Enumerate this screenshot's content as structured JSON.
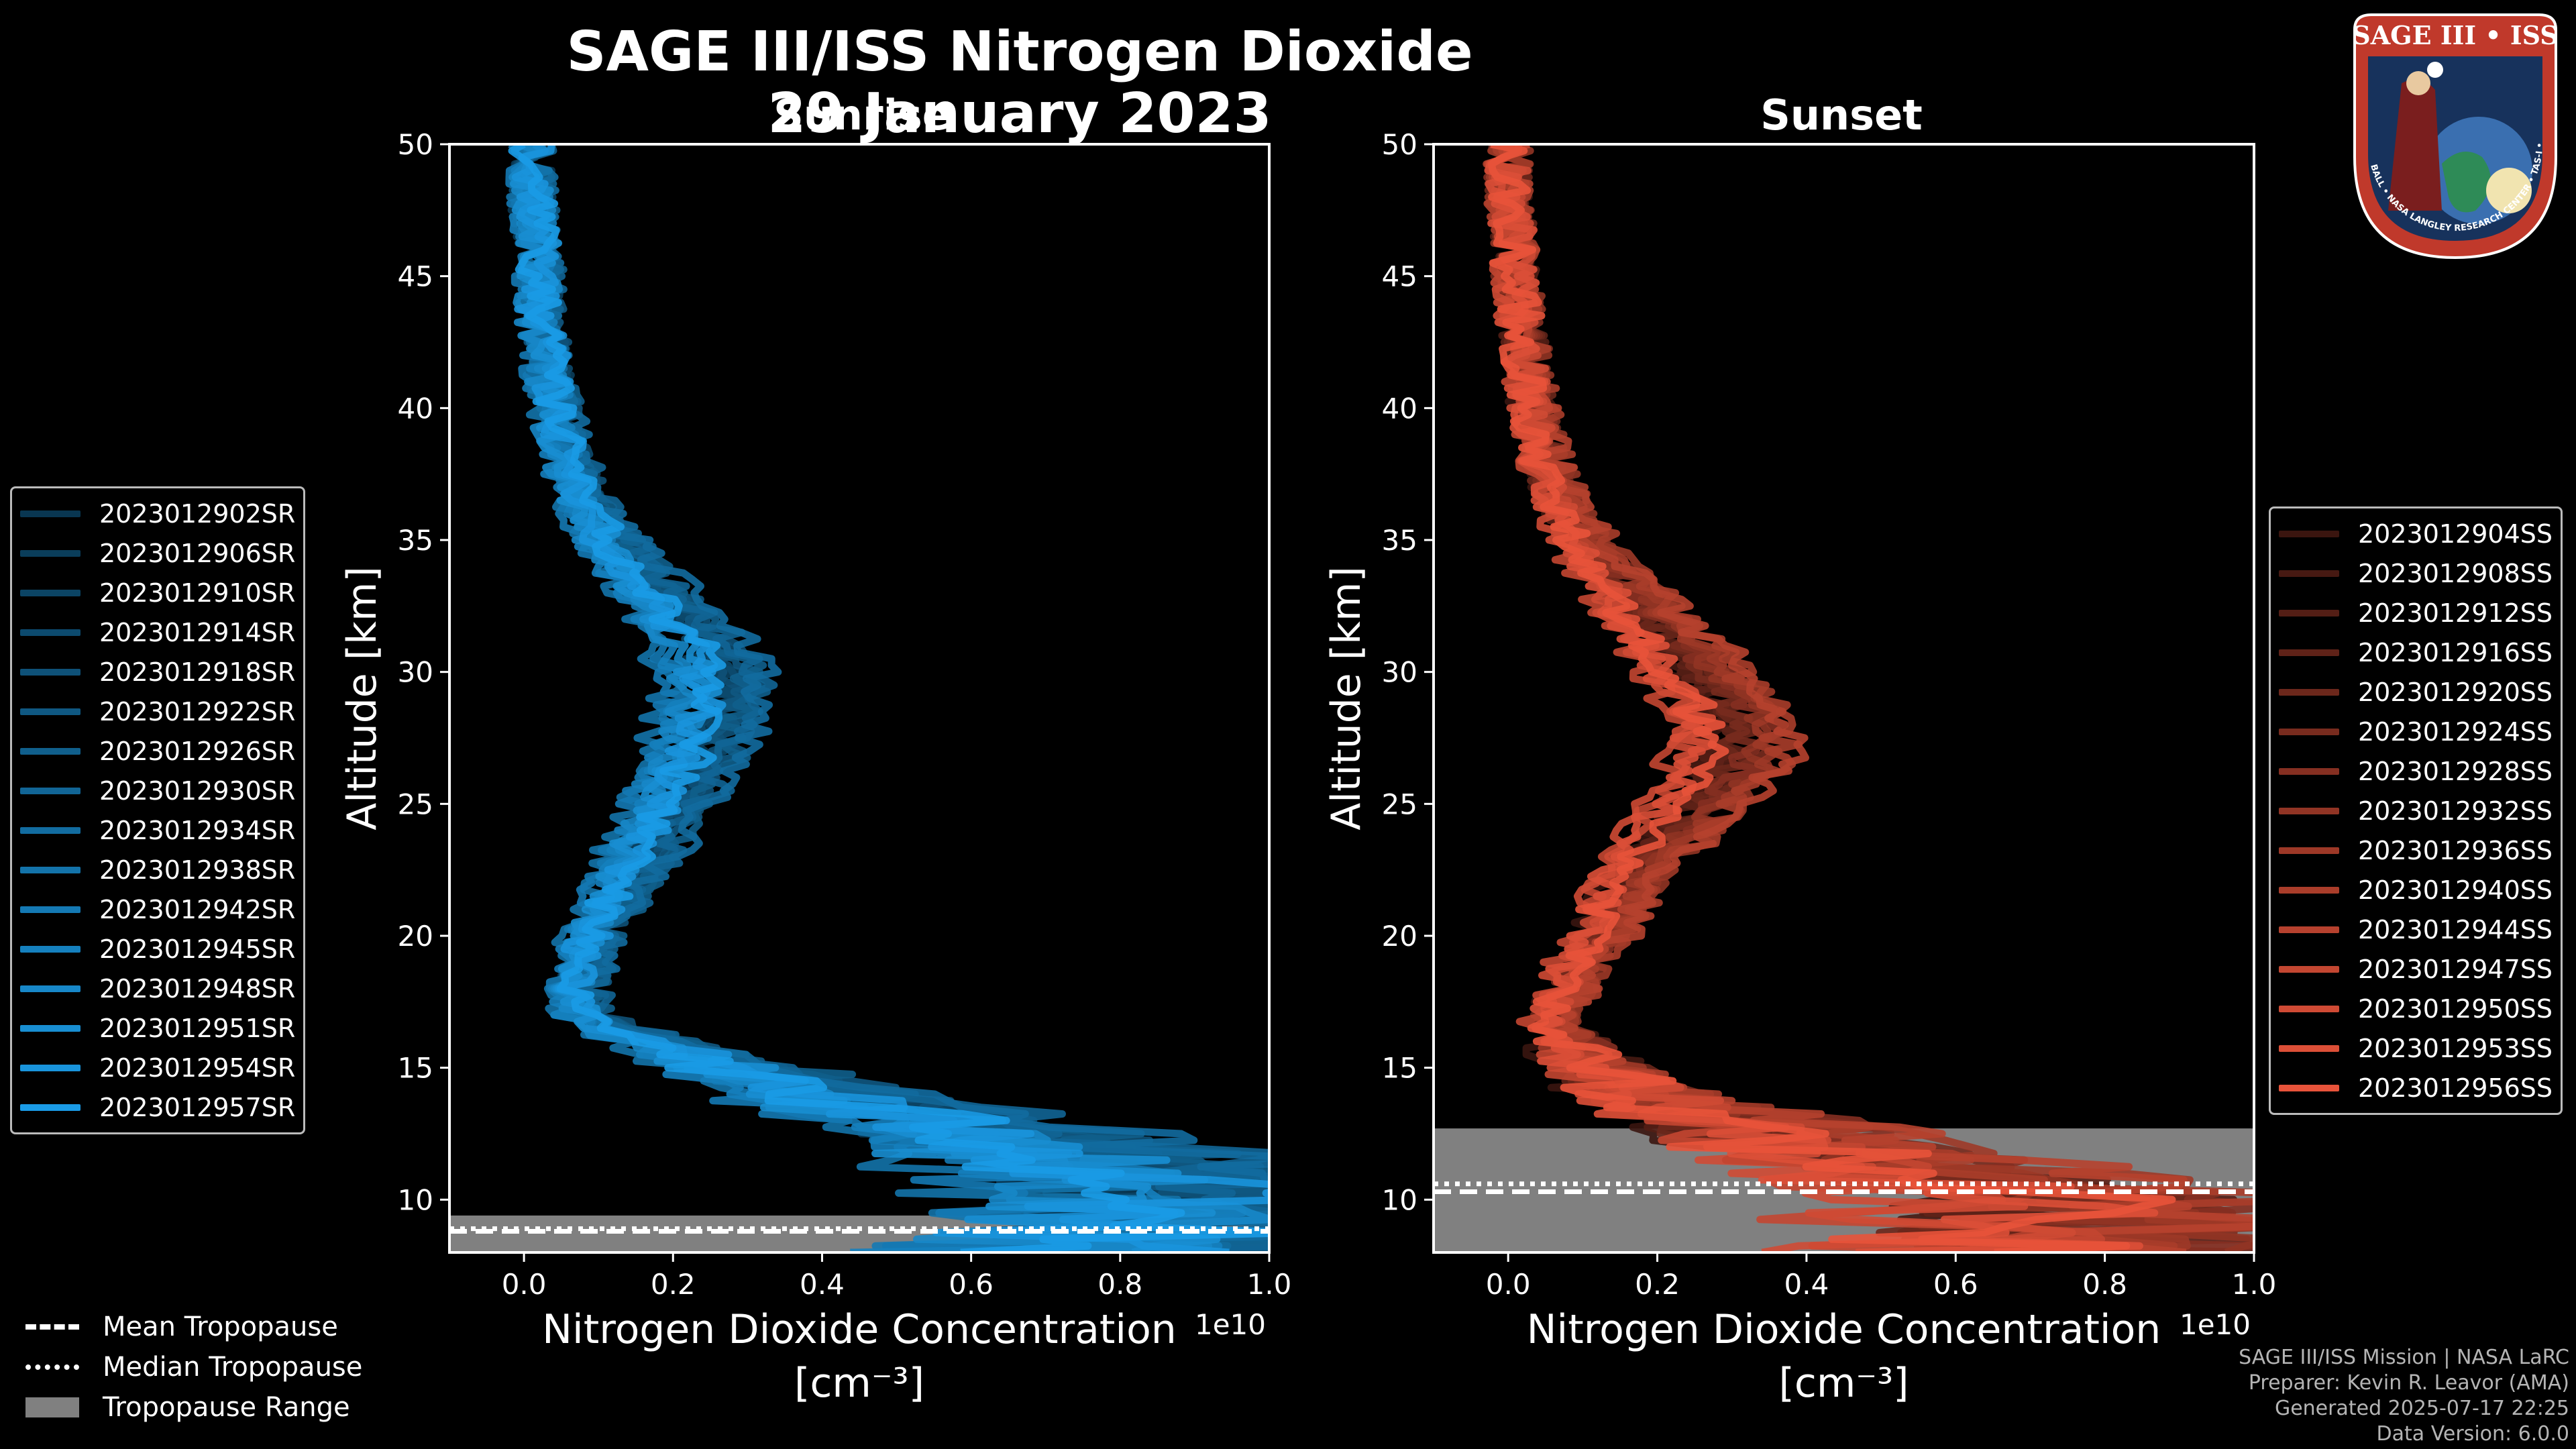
{
  "header": {
    "title": "SAGE III/ISS Nitrogen Dioxide",
    "date": "29 January 2023"
  },
  "colors": {
    "sunrise": "#1a9be6",
    "sunset": "#e8533a",
    "background": "#000000",
    "tropopause_fill": "#808080"
  },
  "panels": {
    "sunrise": {
      "subtitle": "Sunrise",
      "ylabel": "Altitude [km]",
      "xlabel_line1": "Nitrogen Dioxide Concentration",
      "xlabel_line2": "[cm⁻³]",
      "offset_text": "1e10"
    },
    "sunset": {
      "subtitle": "Sunset",
      "ylabel": "Altitude [km]",
      "xlabel_line1": "Nitrogen Dioxide Concentration",
      "xlabel_line2": "[cm⁻³]",
      "offset_text": "1e10"
    }
  },
  "legend_sunrise": [
    "2023012902SR",
    "2023012906SR",
    "2023012910SR",
    "2023012914SR",
    "2023012918SR",
    "2023012922SR",
    "2023012926SR",
    "2023012930SR",
    "2023012934SR",
    "2023012938SR",
    "2023012942SR",
    "2023012945SR",
    "2023012948SR",
    "2023012951SR",
    "2023012954SR",
    "2023012957SR"
  ],
  "legend_sunset": [
    "2023012904SS",
    "2023012908SS",
    "2023012912SS",
    "2023012916SS",
    "2023012920SS",
    "2023012924SS",
    "2023012928SS",
    "2023012932SS",
    "2023012936SS",
    "2023012940SS",
    "2023012944SS",
    "2023012947SS",
    "2023012950SS",
    "2023012953SS",
    "2023012956SS"
  ],
  "tropopause_legend": {
    "mean": "Mean Tropopause",
    "median": "Median Tropopause",
    "range": "Tropopause Range"
  },
  "credits": [
    "SAGE III/ISS Mission | NASA LaRC",
    "Preparer: Kevin R. Leavor (AMA)",
    "Generated 2025-07-17 22:25",
    "Data Version: 6.0.0"
  ],
  "logo": {
    "title": "SAGE III • ISS",
    "ring_text": "BALL • NASA LANGLEY RESEARCH CENTER • TAS-I • ESA"
  },
  "chart_data": [
    {
      "type": "line",
      "title": "Sunrise",
      "xlabel": "Nitrogen Dioxide Concentration [cm⁻³]",
      "ylabel": "Altitude [km]",
      "xlim": [
        -0.1,
        1.0
      ],
      "ylim": [
        8,
        50
      ],
      "x_scale_note": "1e10",
      "xticks": [
        0.0,
        0.2,
        0.4,
        0.6,
        0.8,
        1.0
      ],
      "yticks": [
        10,
        15,
        20,
        25,
        30,
        35,
        40,
        45,
        50
      ],
      "altitude": [
        8.5,
        10,
        11,
        12,
        13,
        14,
        15,
        16,
        17,
        18,
        19,
        20,
        21,
        22,
        23,
        24,
        25,
        26,
        27,
        28,
        29,
        30,
        31,
        32,
        33,
        34,
        35,
        36,
        37,
        38,
        39,
        40,
        41,
        42,
        43,
        44,
        45,
        46,
        47,
        48,
        49,
        50
      ],
      "mean_profile": [
        0.7,
        0.8,
        0.75,
        0.6,
        0.5,
        0.35,
        0.25,
        0.15,
        0.08,
        0.07,
        0.08,
        0.09,
        0.11,
        0.13,
        0.15,
        0.17,
        0.19,
        0.21,
        0.23,
        0.24,
        0.25,
        0.25,
        0.23,
        0.2,
        0.17,
        0.14,
        0.11,
        0.09,
        0.07,
        0.06,
        0.05,
        0.04,
        0.035,
        0.03,
        0.025,
        0.02,
        0.02,
        0.02,
        0.015,
        0.01,
        0.01,
        0.01
      ],
      "series_count": 16,
      "tropopause": {
        "mean_km": 8.8,
        "median_km": 8.9,
        "range_km": [
          8.0,
          9.4
        ]
      }
    },
    {
      "type": "line",
      "title": "Sunset",
      "xlabel": "Nitrogen Dioxide Concentration [cm⁻³]",
      "ylabel": "Altitude [km]",
      "xlim": [
        -0.1,
        1.0
      ],
      "ylim": [
        8,
        50
      ],
      "x_scale_note": "1e10",
      "xticks": [
        0.0,
        0.2,
        0.4,
        0.6,
        0.8,
        1.0
      ],
      "yticks": [
        10,
        15,
        20,
        25,
        30,
        35,
        40,
        45,
        50
      ],
      "altitude": [
        8.5,
        10,
        11,
        12,
        13,
        14,
        15,
        16,
        17,
        18,
        19,
        20,
        21,
        22,
        23,
        24,
        25,
        26,
        27,
        28,
        29,
        30,
        31,
        32,
        33,
        34,
        35,
        36,
        37,
        38,
        39,
        40,
        41,
        42,
        43,
        44,
        45,
        46,
        47,
        48,
        49,
        50
      ],
      "mean_profile": [
        0.6,
        0.7,
        0.5,
        0.35,
        0.25,
        0.15,
        0.1,
        0.07,
        0.06,
        0.08,
        0.1,
        0.12,
        0.14,
        0.16,
        0.19,
        0.22,
        0.25,
        0.28,
        0.3,
        0.3,
        0.28,
        0.25,
        0.22,
        0.19,
        0.16,
        0.13,
        0.1,
        0.08,
        0.06,
        0.05,
        0.04,
        0.035,
        0.03,
        0.025,
        0.02,
        0.015,
        0.01,
        0.01,
        0.005,
        0.0,
        0.0,
        0.0
      ],
      "series_count": 15,
      "tropopause": {
        "mean_km": 10.3,
        "median_km": 10.6,
        "range_km": [
          8.0,
          12.7
        ]
      }
    }
  ]
}
